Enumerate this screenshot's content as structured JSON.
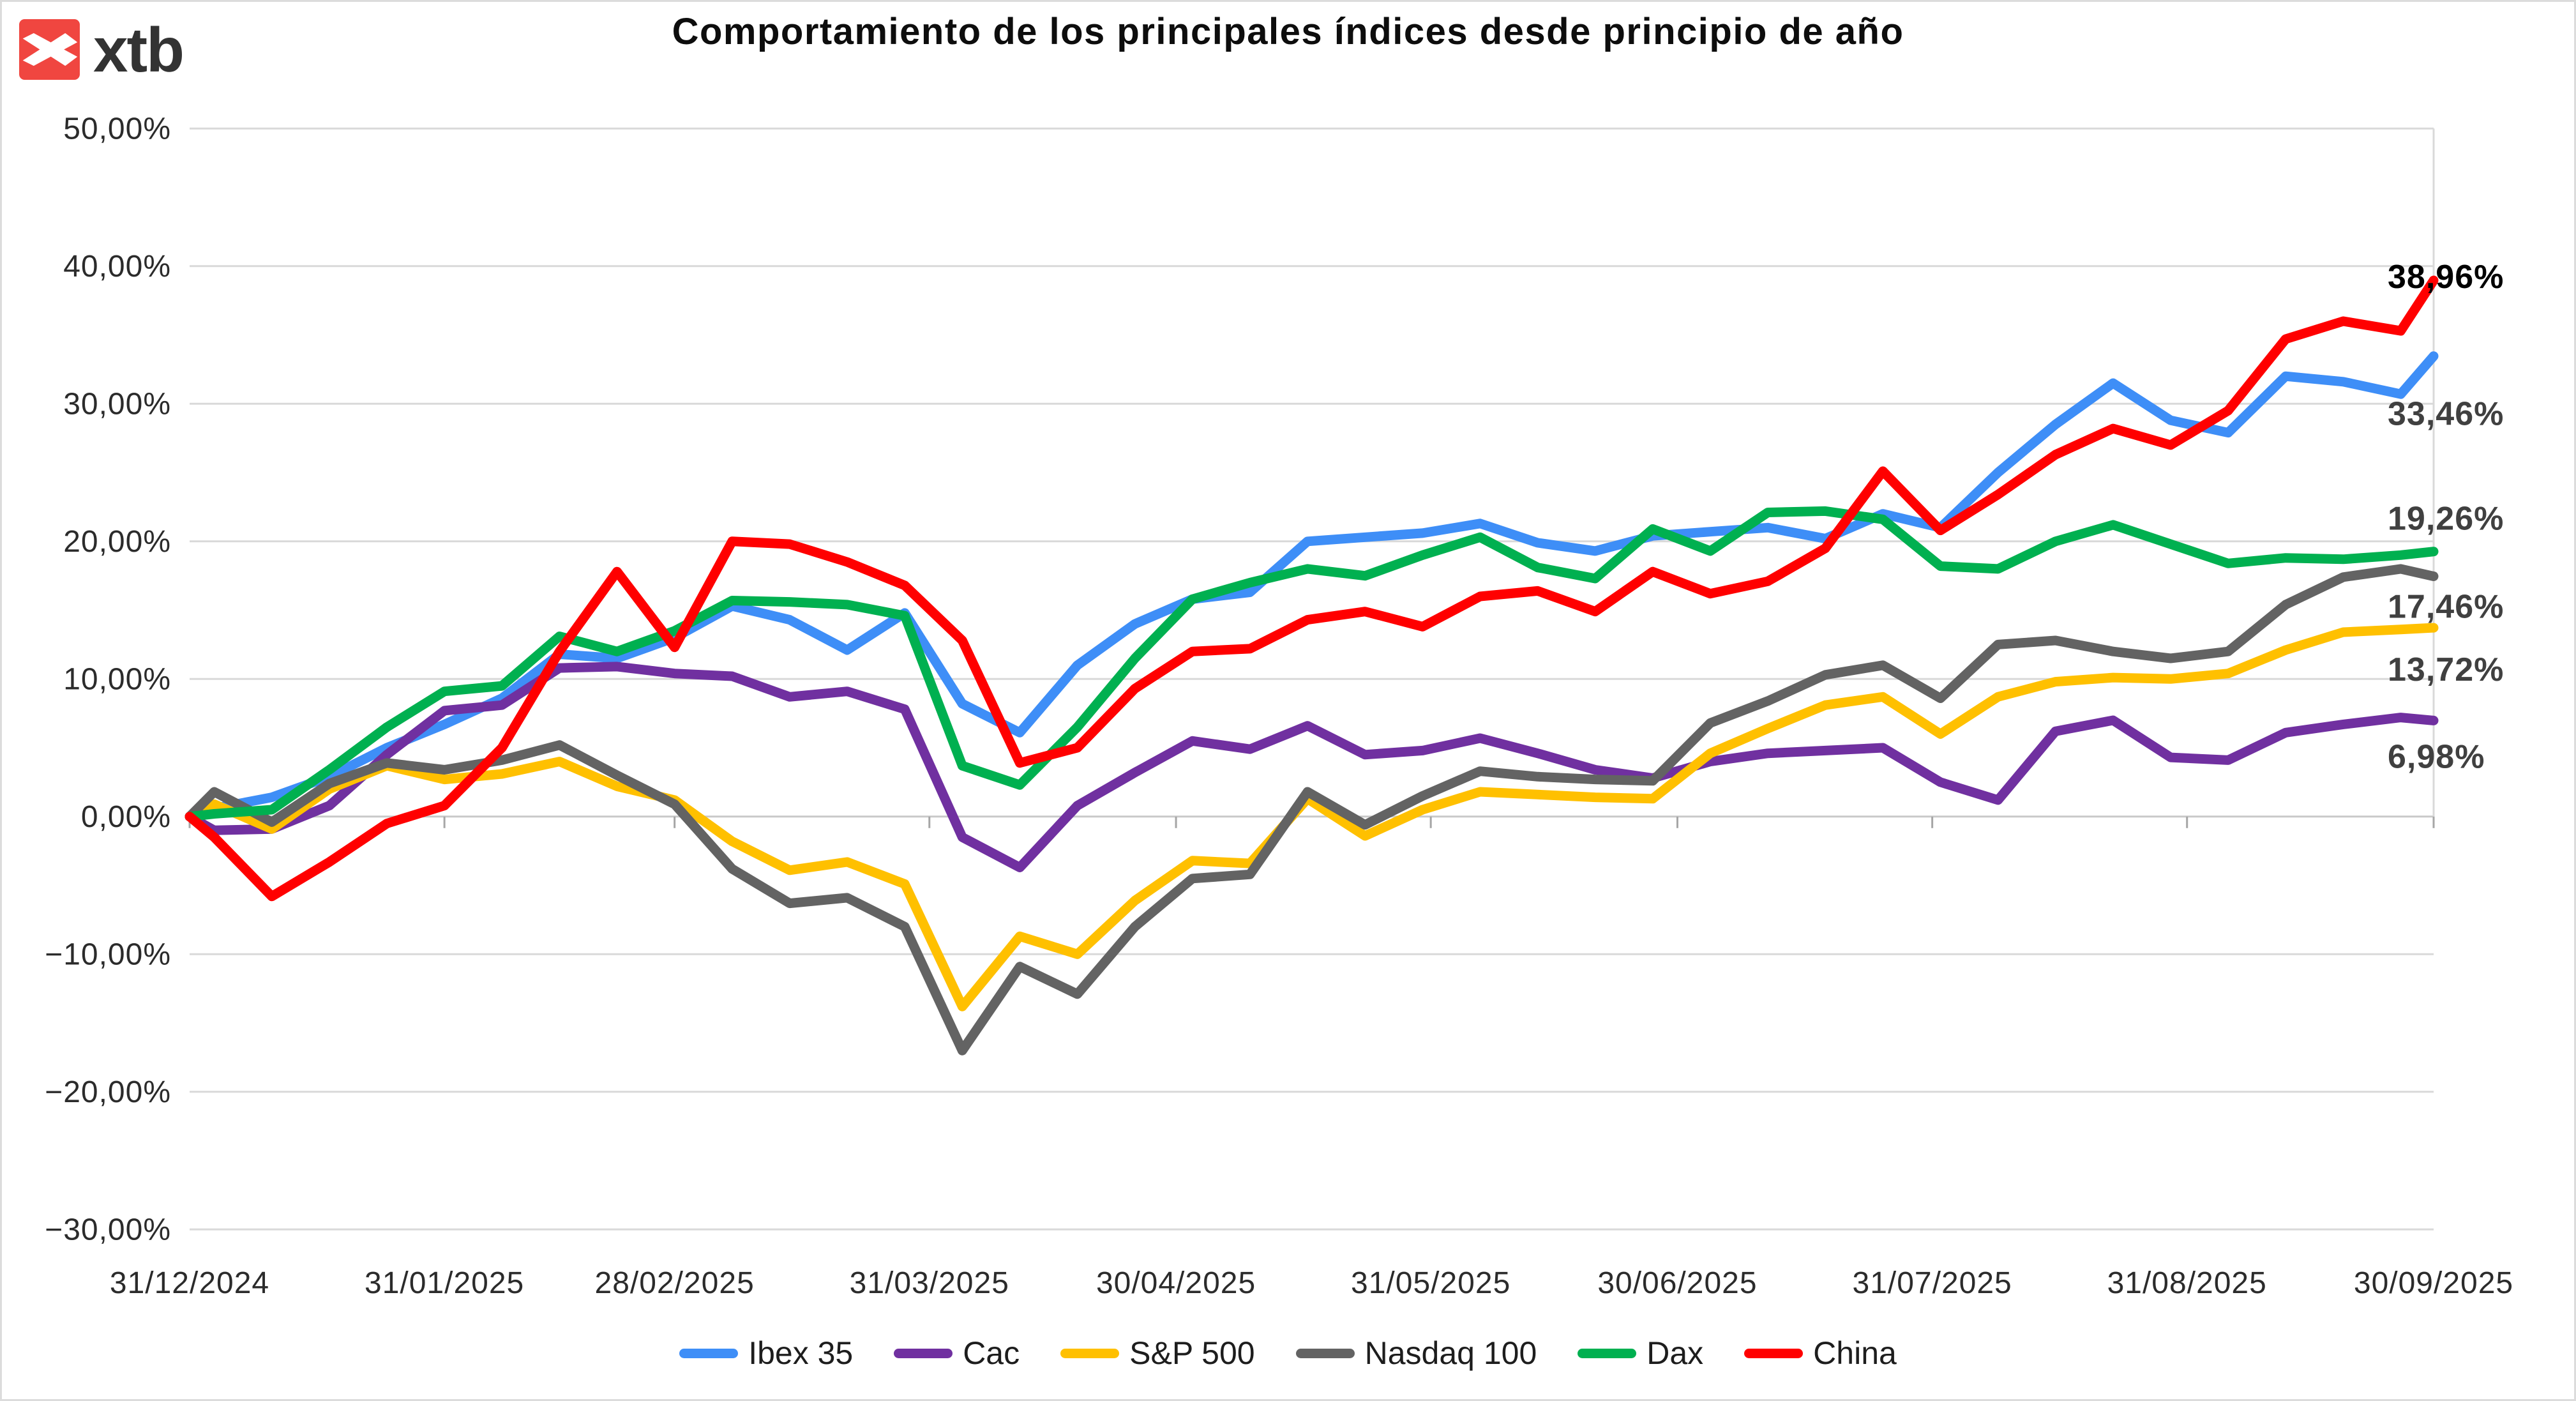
{
  "brand": {
    "logo_text": "xtb",
    "logo_bg_color": "#F04640",
    "logo_glyph": "x-arrows-icon"
  },
  "title": "Comportamiento de los principales índices desde principio de año",
  "chart_data": {
    "type": "line",
    "title": "Comportamiento de los principales índices desde principio de año",
    "grid": true,
    "legend_position": "bottom",
    "ylim": [
      -30,
      50
    ],
    "y_axis": {
      "tick_values": [
        50,
        40,
        30,
        20,
        10,
        0,
        -10,
        -20,
        -30
      ],
      "tick_labels": [
        "50,00%",
        "40,00%",
        "30,00%",
        "20,00%",
        "10,00%",
        "0,00%",
        "−10,00%",
        "−20,00%",
        "−30,00%"
      ]
    },
    "x_axis": {
      "labels": [
        "31/12/2024",
        "31/01/2025",
        "28/02/2025",
        "31/03/2025",
        "30/04/2025",
        "31/05/2025",
        "30/06/2025",
        "31/07/2025",
        "31/08/2025",
        "30/09/2025"
      ],
      "label_weeks": [
        0,
        4.4286,
        8.4286,
        12.857,
        17.143,
        21.571,
        25.857,
        30.286,
        34.714,
        39
      ]
    },
    "x_weeks": [
      0,
      0.4286,
      1.4286,
      2.4286,
      3.4286,
      4.4286,
      5.4286,
      6.4286,
      7.4286,
      8.4286,
      9.4286,
      10.4286,
      11.4286,
      12.4286,
      13.4286,
      14.4286,
      15.4286,
      16.4286,
      17.4286,
      18.4286,
      19.4286,
      20.4286,
      21.4286,
      22.4286,
      23.4286,
      24.4286,
      25.4286,
      26.4286,
      27.4286,
      28.4286,
      29.4286,
      30.4286,
      31.4286,
      32.4286,
      33.4286,
      34.4286,
      35.4286,
      36.4286,
      37.4286,
      38.4286,
      39
    ],
    "series": [
      {
        "name": "Ibex 35",
        "color": "#3E8EF7",
        "end_label": "33,46%",
        "end_value": 33.46,
        "end_label_color": "#404040",
        "label_offset": 90,
        "values": [
          0,
          0.6,
          1.4,
          2.9,
          5.0,
          6.7,
          8.6,
          11.8,
          11.5,
          13.0,
          15.3,
          14.3,
          12.1,
          14.8,
          8.2,
          6.1,
          11.0,
          14.0,
          15.8,
          16.3,
          20.0,
          20.3,
          20.6,
          21.3,
          19.9,
          19.3,
          20.4,
          20.7,
          21.0,
          20.2,
          22.0,
          21.0,
          25.0,
          28.5,
          31.5,
          28.8,
          27.9,
          32.0,
          31.6,
          30.7,
          33.46
        ]
      },
      {
        "name": "Cac",
        "color": "#7030A0",
        "end_label": "6,98%",
        "end_value": 6.98,
        "end_label_color": "#404040",
        "label_offset": 56,
        "values": [
          0,
          -1.0,
          -0.9,
          0.8,
          4.5,
          7.7,
          8.1,
          10.8,
          10.9,
          10.4,
          10.2,
          8.7,
          9.1,
          7.8,
          -1.5,
          -3.7,
          0.8,
          3.2,
          5.5,
          4.9,
          6.6,
          4.5,
          4.8,
          5.7,
          4.6,
          3.4,
          2.8,
          4.0,
          4.6,
          4.8,
          5.0,
          2.5,
          1.2,
          6.2,
          7.0,
          4.3,
          4.1,
          6.1,
          6.7,
          7.2,
          6.98
        ]
      },
      {
        "name": "S&P 500",
        "color": "#FFC000",
        "end_label": "13,72%",
        "end_value": 13.72,
        "end_label_color": "#404040",
        "label_offset": 65,
        "values": [
          0,
          0.9,
          -0.9,
          2.0,
          3.7,
          2.7,
          3.1,
          4.0,
          2.2,
          1.2,
          -1.8,
          -3.9,
          -3.3,
          -4.9,
          -13.8,
          -8.7,
          -10.0,
          -6.1,
          -3.2,
          -3.4,
          1.3,
          -1.4,
          0.5,
          1.8,
          1.6,
          1.4,
          1.3,
          4.6,
          6.4,
          8.1,
          8.7,
          6.0,
          8.7,
          9.8,
          10.1,
          10.0,
          10.4,
          12.1,
          13.4,
          13.6,
          13.72
        ]
      },
      {
        "name": "Nasdaq 100",
        "color": "#636363",
        "end_label": "17,46%",
        "end_value": 17.46,
        "end_label_color": "#404040",
        "label_offset": 47,
        "values": [
          0,
          1.8,
          -0.4,
          2.4,
          3.9,
          3.4,
          4.1,
          5.2,
          3.0,
          0.9,
          -3.8,
          -6.3,
          -5.9,
          -8.0,
          -17.0,
          -10.9,
          -12.9,
          -8.0,
          -4.5,
          -4.2,
          1.8,
          -0.6,
          1.5,
          3.3,
          2.9,
          2.7,
          2.6,
          6.8,
          8.4,
          10.3,
          11.0,
          8.6,
          12.5,
          12.8,
          12.0,
          11.5,
          12.0,
          15.4,
          17.4,
          18.0,
          17.46
        ]
      },
      {
        "name": "Dax",
        "color": "#00B050",
        "end_label": "19,26%",
        "end_value": 19.26,
        "end_label_color": "#404040",
        "label_offset": -52,
        "values": [
          0,
          0.2,
          0.5,
          3.4,
          6.5,
          9.1,
          9.5,
          13.1,
          12.0,
          13.5,
          15.7,
          15.6,
          15.4,
          14.6,
          3.7,
          2.3,
          6.5,
          11.5,
          15.8,
          17.0,
          18.0,
          17.5,
          19.0,
          20.3,
          18.1,
          17.3,
          20.9,
          19.3,
          22.1,
          22.2,
          21.6,
          18.2,
          18.0,
          20.0,
          21.2,
          19.8,
          18.4,
          18.8,
          18.7,
          19.0,
          19.26
        ]
      },
      {
        "name": "China",
        "color": "#FF0000",
        "end_label": "38,96%",
        "end_value": 38.96,
        "end_label_color": "#000000",
        "label_offset": -6,
        "values": [
          0,
          -1.5,
          -5.8,
          -3.3,
          -0.5,
          0.8,
          5.0,
          12.0,
          17.8,
          12.3,
          20.0,
          19.8,
          18.5,
          16.8,
          12.8,
          3.9,
          5.0,
          9.3,
          12.0,
          12.2,
          14.3,
          14.9,
          13.8,
          16.0,
          16.4,
          14.9,
          17.8,
          16.2,
          17.1,
          19.5,
          25.1,
          20.8,
          23.4,
          26.3,
          28.2,
          27.0,
          29.5,
          34.7,
          36.0,
          35.3,
          38.96
        ]
      }
    ],
    "legend": [
      "Ibex 35",
      "Cac",
      "S&P 500",
      "Nasdaq 100",
      "Dax",
      "China"
    ],
    "style": {
      "gridline_color": "#D9D9D9",
      "axis_line_color": "#C9C9C9",
      "tick_color": "#A6A6A6",
      "axis_text_color": "#2B2B2B"
    }
  }
}
